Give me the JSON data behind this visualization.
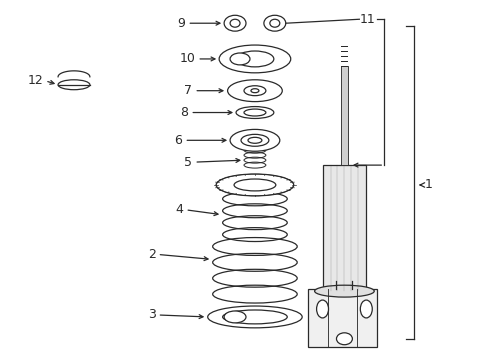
{
  "bg_color": "#ffffff",
  "lc": "#2a2a2a",
  "lw": 0.9,
  "fig_width": 4.89,
  "fig_height": 3.6,
  "dpi": 100,
  "xlim": [
    0,
    489
  ],
  "ylim": [
    0,
    360
  ]
}
